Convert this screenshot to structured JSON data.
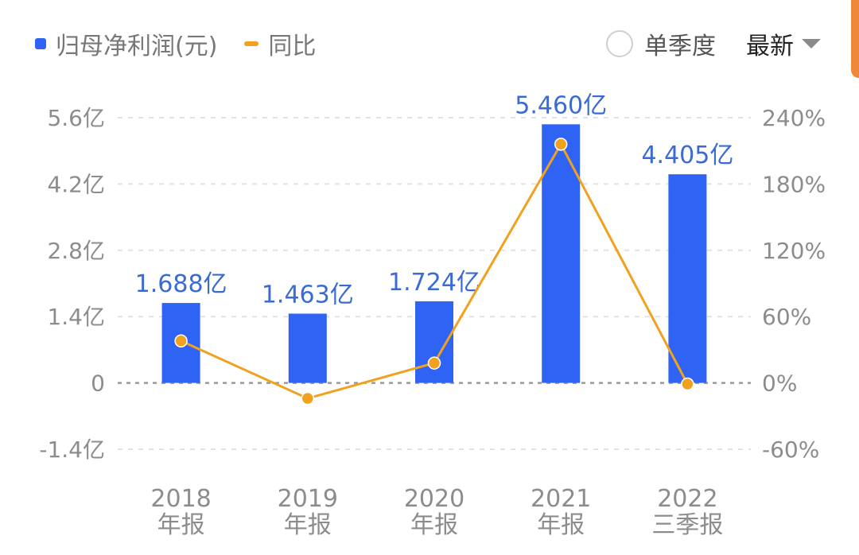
{
  "legend": {
    "bar_label": "归母净利润(元)",
    "line_label": "同比"
  },
  "controls": {
    "quarterly_label": "单季度",
    "dropdown_label": "最新"
  },
  "colors": {
    "bar": "#2f63f4",
    "line": "#f0a21f",
    "data_label": "#3a6ad6",
    "scrollbar": "#f0883a"
  },
  "chart_data": {
    "type": "bar",
    "categories": [
      "2018\n年报",
      "2019\n年报",
      "2020\n年报",
      "2021\n年报",
      "2022\n三季报"
    ],
    "series": [
      {
        "name": "归母净利润(元)",
        "type": "bar",
        "axis": "left",
        "values": [
          1.688,
          1.463,
          1.724,
          5.46,
          4.405
        ],
        "labels": [
          "1.688亿",
          "1.463亿",
          "1.724亿",
          "5.460亿",
          "4.405亿"
        ]
      },
      {
        "name": "同比",
        "type": "line",
        "axis": "right",
        "values": [
          38,
          -14,
          18,
          216,
          -1
        ]
      }
    ],
    "left_axis": {
      "ylim": [
        -1.4,
        5.6
      ],
      "ticks": [
        5.6,
        4.2,
        2.8,
        1.4,
        0,
        -1.4
      ],
      "tick_labels": [
        "5.6亿",
        "4.2亿",
        "2.8亿",
        "1.4亿",
        "0",
        "-1.4亿"
      ]
    },
    "right_axis": {
      "ylim": [
        -60,
        240
      ],
      "ticks": [
        240,
        180,
        120,
        60,
        0,
        -60
      ],
      "tick_labels": [
        "240%",
        "180%",
        "120%",
        "60%",
        "0%",
        "-60%"
      ]
    },
    "grid": true,
    "legend_position": "top-left"
  }
}
